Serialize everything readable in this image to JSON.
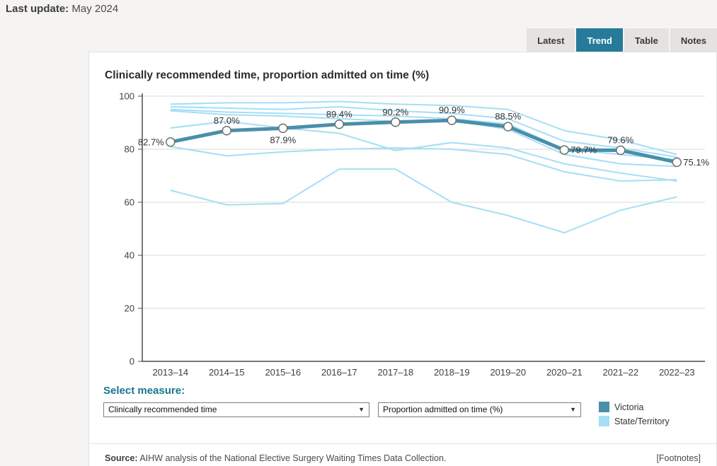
{
  "topbar": {
    "last_update_label": "Last update:",
    "last_update_value": "May 2024"
  },
  "tabs": [
    {
      "label": "Latest",
      "active": false
    },
    {
      "label": "Trend",
      "active": true
    },
    {
      "label": "Table",
      "active": false
    },
    {
      "label": "Notes",
      "active": false
    }
  ],
  "card": {
    "title": "Clinically recommended time, proportion admitted on time (%)"
  },
  "chart_data": {
    "type": "line",
    "title": "Clinically recommended time, proportion admitted on time (%)",
    "categories": [
      "2013–14",
      "2014–15",
      "2015–16",
      "2016–17",
      "2017–18",
      "2018–19",
      "2019–20",
      "2020–21",
      "2021–22",
      "2022–23"
    ],
    "ylim": [
      0,
      100
    ],
    "yticks": [
      0,
      20,
      40,
      60,
      80,
      100
    ],
    "grid": true,
    "legend_position": "bottom-right",
    "series": [
      {
        "name": "Victoria",
        "color": "#4a8fa9",
        "values": [
          82.7,
          87.0,
          87.9,
          89.4,
          90.2,
          90.9,
          88.5,
          79.7,
          79.6,
          75.1
        ],
        "point_labels": [
          "82.7%",
          "87.0%",
          "87.9%",
          "89.4%",
          "90.2%",
          "90.9%",
          "88.5%",
          "79.7%",
          "79.6%",
          "75.1%"
        ],
        "label_positions": [
          "left",
          "above",
          "below",
          "above",
          "above",
          "above",
          "above",
          "right",
          "above",
          "right"
        ]
      },
      {
        "name": "State/Territory",
        "color": "#a5def5",
        "lines": [
          [
            97,
            97.5,
            97.5,
            98,
            97,
            96.5,
            95,
            87,
            83.5,
            78
          ],
          [
            96,
            95.5,
            95,
            96,
            94.5,
            93.5,
            91.5,
            83,
            80.5,
            77
          ],
          [
            95,
            94,
            93.5,
            93,
            92.5,
            91.5,
            89.5,
            80,
            78,
            76
          ],
          [
            94.5,
            93,
            92.5,
            91.5,
            90.5,
            91,
            87.5,
            78,
            74.5,
            73.5
          ],
          [
            88,
            90.5,
            88,
            86,
            79.5,
            82.5,
            80.5,
            74.5,
            71,
            68
          ],
          [
            81,
            77.5,
            79,
            80,
            80.5,
            80,
            78,
            71.5,
            68,
            68.5
          ],
          [
            64.5,
            59,
            59.5,
            72.5,
            72.5,
            60,
            55,
            48.5,
            57,
            62
          ]
        ]
      }
    ]
  },
  "controls": {
    "select_measure_label": "Select measure:",
    "dropdown1_value": "Clinically recommended time",
    "dropdown2_value": "Proportion admitted on time (%)"
  },
  "legend": [
    {
      "label": "Victoria",
      "color": "#4a8fa9"
    },
    {
      "label": "State/Territory",
      "color": "#a5def5"
    }
  ],
  "footer": {
    "source_label": "Source:",
    "source_text": " AIHW analysis of the National Elective Surgery Waiting Times Data Collection.",
    "footnotes": "[Footnotes]"
  },
  "colors": {
    "accent_teal": "#267b9b",
    "victoria": "#4a8fa9",
    "state_territory": "#a5def5"
  }
}
